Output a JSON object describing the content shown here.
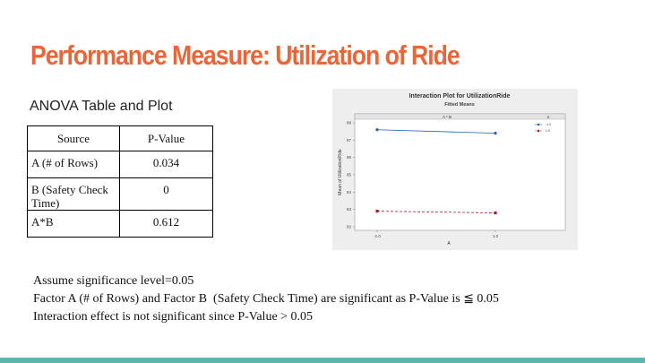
{
  "slide": {
    "title": "Performance Measure: Utilization of Ride",
    "subtitle": "ANOVA Table and Plot"
  },
  "table": {
    "headers": [
      "Source",
      "P-Value"
    ],
    "rows": [
      {
        "source": "A (# of Rows)",
        "pvalue": "0.034"
      },
      {
        "source": "B (Safety Check Time)",
        "pvalue": "0"
      },
      {
        "source": "A*B",
        "pvalue": "0.612"
      }
    ]
  },
  "notes": [
    "Assume significance level=0.05",
    "Factor A (# of Rows) and Factor B  (Safety Check Time) are significant as P-Value is ≦ 0.05",
    "Interaction effect is not significant since P-Value > 0.05"
  ],
  "chart_data": {
    "type": "line",
    "title": "Interaction Plot for UtilizationRide",
    "subtitle": "Fitted Means",
    "panel_label": "A * B",
    "xlabel": "A",
    "ylabel": "Mean of UtilizationRide",
    "categories": [
      "-1.0",
      "1.0"
    ],
    "ylim": [
      82,
      88
    ],
    "yticks": [
      82,
      83,
      84,
      85,
      86,
      87,
      88
    ],
    "legend_title": "B",
    "legend_position": "top-right",
    "series": [
      {
        "name": "-1.0",
        "values": [
          87.6,
          87.4
        ],
        "color": "#1f5fae",
        "marker": "circle",
        "dash": "solid"
      },
      {
        "name": "1.0",
        "values": [
          82.9,
          82.8
        ],
        "color": "#a5202a",
        "marker": "square",
        "dash": "dashed"
      }
    ]
  },
  "colors": {
    "title": "#e8663a",
    "accent_bar": "#5bb7ad"
  }
}
